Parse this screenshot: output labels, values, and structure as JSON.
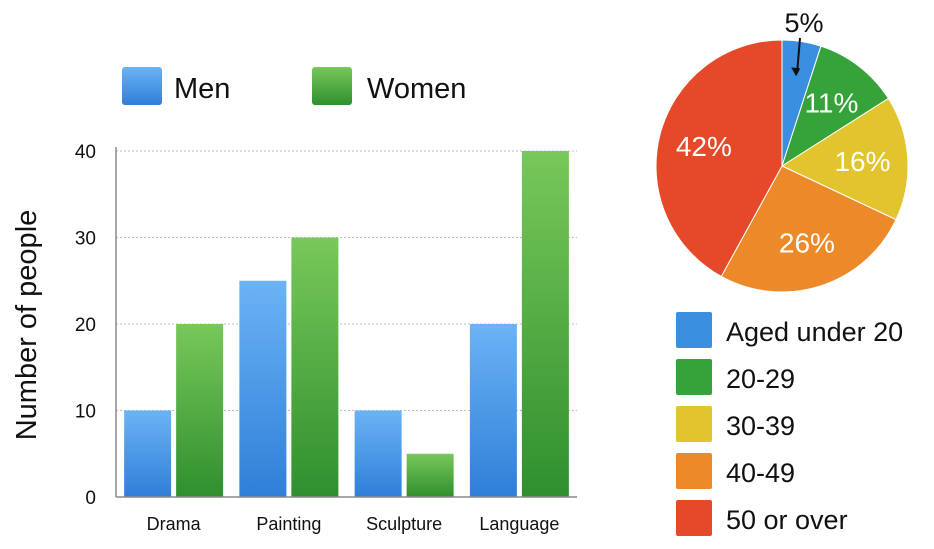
{
  "colors": {
    "men": "#3a8fe0",
    "women": "#3fa53a",
    "grid": "#bdbdbd",
    "axis": "#8a8a8a"
  },
  "chart_data": [
    {
      "type": "bar",
      "ylabel": "Number of people",
      "ylim": [
        0,
        40
      ],
      "yticks": [
        "0",
        "10",
        "20",
        "30",
        "40"
      ],
      "categories": [
        "Drama",
        "Painting",
        "Sculpture",
        "Language"
      ],
      "grid": true,
      "legend": "top",
      "series": [
        {
          "name": "Men",
          "color_key": "men",
          "values": [
            10,
            25,
            10,
            20
          ]
        },
        {
          "name": "Women",
          "color_key": "women",
          "values": [
            20,
            30,
            5,
            40
          ]
        }
      ]
    },
    {
      "type": "pie",
      "legend": "bottom",
      "slices": [
        {
          "label": "Aged under 20",
          "value": 5,
          "display": "5%",
          "color": "#3a8fe0"
        },
        {
          "label": "20-29",
          "value": 11,
          "display": "11%",
          "color": "#35a23a"
        },
        {
          "label": "30-39",
          "value": 16,
          "display": "16%",
          "color": "#e2c52e"
        },
        {
          "label": "40-49",
          "value": 26,
          "display": "26%",
          "color": "#ec8a2a"
        },
        {
          "label": "50 or over",
          "value": 42,
          "display": "42%",
          "color": "#e5492a"
        }
      ]
    }
  ]
}
